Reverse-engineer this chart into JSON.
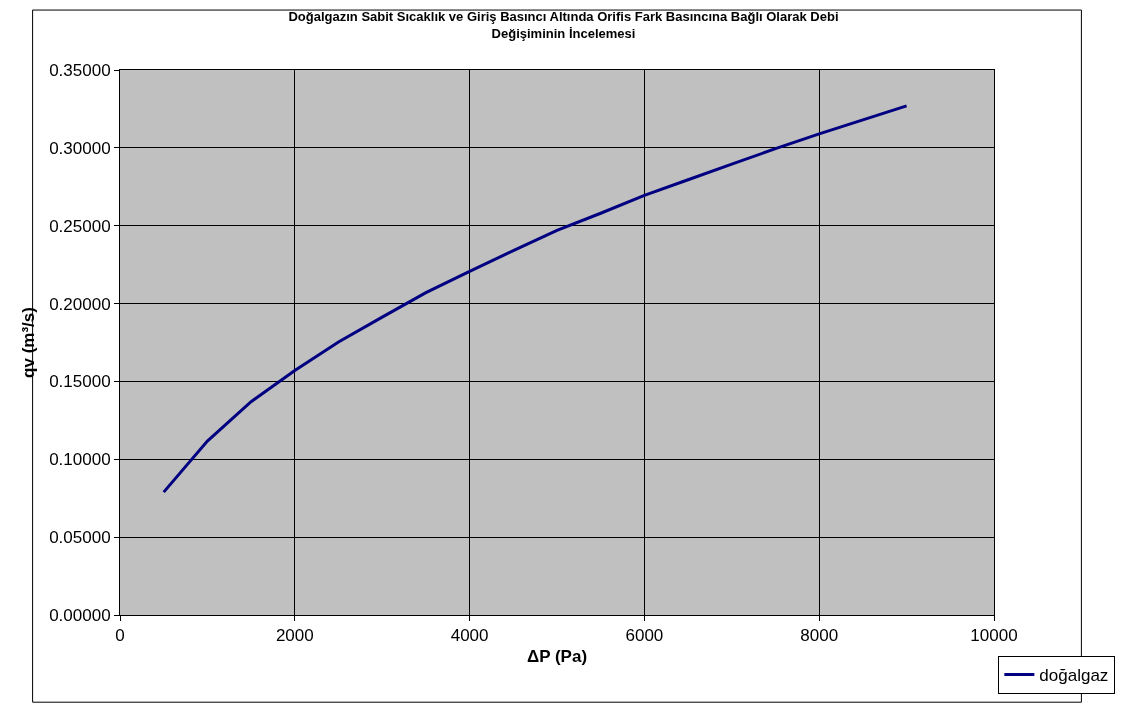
{
  "chart_data": {
    "type": "line",
    "title": "Doğalgazın Sabit Sıcaklık ve Giriş Basıncı Altında Orifis Fark Basıncına Bağlı Olarak Debi\nDeğişiminin İncelemesi",
    "xlabel": "ΔP (Pa)",
    "ylabel": "qv (m³/s)",
    "x": [
      500,
      1000,
      1500,
      2000,
      2500,
      3000,
      3500,
      4000,
      4500,
      5000,
      5500,
      6000,
      6500,
      7000,
      7500,
      8000,
      8500,
      9000
    ],
    "series": [
      {
        "name": "doğalgaz",
        "color": "#000080",
        "values": [
          0.0789,
          0.1117,
          0.137,
          0.157,
          0.1753,
          0.1913,
          0.207,
          0.2207,
          0.234,
          0.247,
          0.258,
          0.2695,
          0.2795,
          0.2895,
          0.2995,
          0.309,
          0.318,
          0.327
        ]
      }
    ],
    "xlim": [
      0,
      10000
    ],
    "xticks": [
      0,
      2000,
      4000,
      6000,
      8000,
      10000
    ],
    "ylim": [
      0,
      0.35
    ],
    "yticks": [
      {
        "value": 0,
        "label": "0.00000"
      },
      {
        "value": 0.05,
        "label": "0.05000"
      },
      {
        "value": 0.1,
        "label": "0.10000"
      },
      {
        "value": 0.15,
        "label": "0.15000"
      },
      {
        "value": 0.2,
        "label": "0.20000"
      },
      {
        "value": 0.25,
        "label": "0.25000"
      },
      {
        "value": 0.3,
        "label": "0.30000"
      },
      {
        "value": 0.35,
        "label": "0.35000"
      }
    ],
    "grid": true,
    "legend": "bottom right",
    "marker": "none",
    "line_style": "solid"
  }
}
